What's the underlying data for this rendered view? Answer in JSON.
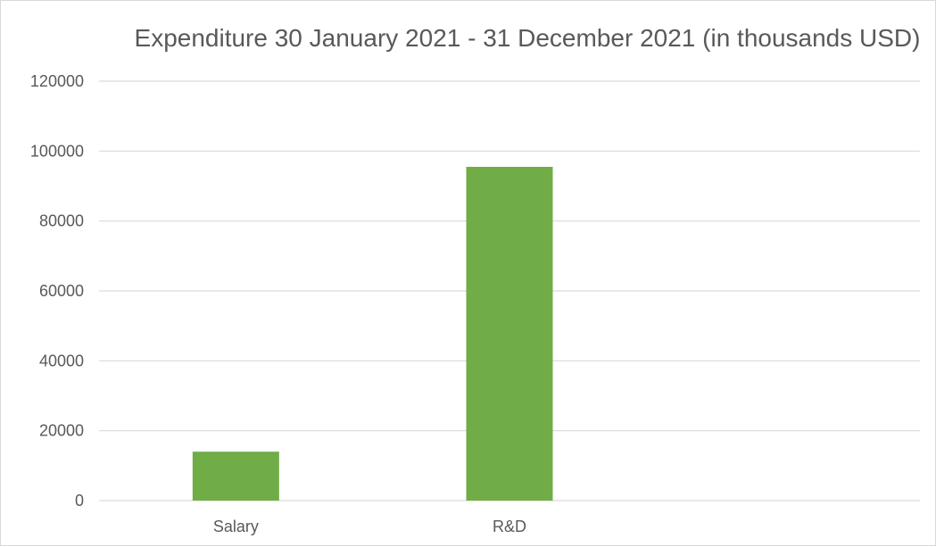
{
  "chart_data": {
    "type": "bar",
    "title": "Expenditure 30 January 2021 - 31 December 2021 (in thousands USD)",
    "categories": [
      "Salary",
      "R&D",
      ""
    ],
    "values": [
      14000,
      95500,
      null
    ],
    "xlabel": "",
    "ylabel": "",
    "ylim": [
      0,
      120000
    ],
    "yticks": [
      0,
      20000,
      40000,
      60000,
      80000,
      100000,
      120000
    ],
    "grid": true,
    "legend": "none",
    "colors": {
      "bar": "#70ad47",
      "grid": "#d9d9d9",
      "text": "#595959"
    }
  }
}
